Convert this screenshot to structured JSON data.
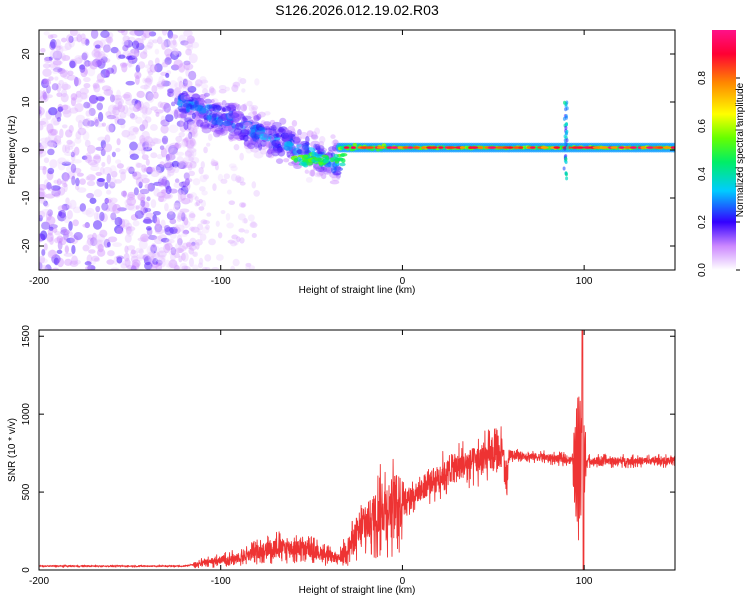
{
  "title": "S126.2026.012.19.02.R03",
  "chart_data": [
    {
      "id": "spectrogram",
      "type": "heatmap",
      "xlabel": "Height of straight line (km)",
      "ylabel": "Frequency (Hz)",
      "xlim": [
        -200,
        150
      ],
      "ylim": [
        -25,
        25
      ],
      "x_ticks": [
        "-200",
        "-100",
        "0",
        "100"
      ],
      "y_ticks": [
        "20",
        "10",
        "0",
        "-10",
        "-20"
      ],
      "x_tick_values": [
        -200,
        -100,
        0,
        100
      ],
      "y_tick_values": [
        20,
        10,
        0,
        -10,
        -20
      ],
      "colorbar": {
        "label": "Normalized spectral amplitude",
        "range": [
          0,
          1
        ],
        "ticks": [
          "0.0",
          "0.2",
          "0.4",
          "0.6",
          "0.8"
        ],
        "tick_values": [
          0.0,
          0.2,
          0.4,
          0.6,
          0.8
        ]
      },
      "features": [
        {
          "region": "noise",
          "x_range": [
            -200,
            -122
          ],
          "freq_range": [
            -25,
            25
          ],
          "amplitude": 0.1
        },
        {
          "region": "diagonal",
          "x_start": -122,
          "x_end": -35,
          "freq_start": 10,
          "freq_end": -3,
          "amplitude": 0.25
        },
        {
          "region": "steady_line",
          "x_start": -35,
          "x_end": 150,
          "freq": 0.5,
          "amplitude": 0.9
        },
        {
          "region": "burst",
          "x": 90,
          "freq_range": [
            -6,
            10
          ],
          "amplitude": 0.3
        }
      ]
    },
    {
      "id": "snr",
      "type": "line",
      "xlabel": "Height of straight line (km)",
      "ylabel": "SNR (10 * v/v)",
      "xlim": [
        -200,
        150
      ],
      "ylim": [
        0,
        1540
      ],
      "x_ticks": [
        "-200",
        "-100",
        "0",
        "100"
      ],
      "y_ticks": [
        "0",
        "500",
        "1000",
        "1500"
      ],
      "x_tick_values": [
        -200,
        -100,
        0,
        100
      ],
      "y_tick_values": [
        0,
        500,
        1000,
        1500
      ],
      "line_color": "#ee3333",
      "trend": {
        "x": [
          -200,
          -120,
          -110,
          -90,
          -70,
          -50,
          -35,
          -20,
          -10,
          0,
          10,
          20,
          30,
          40,
          50,
          57,
          60,
          70,
          80,
          90,
          95,
          100,
          110,
          120,
          130,
          140,
          150
        ],
        "y": [
          25,
          25,
          45,
          80,
          150,
          130,
          70,
          300,
          400,
          450,
          510,
          600,
          660,
          700,
          730,
          760,
          740,
          730,
          720,
          710,
          700,
          700,
          700,
          700,
          700,
          700,
          700
        ]
      }
    }
  ]
}
